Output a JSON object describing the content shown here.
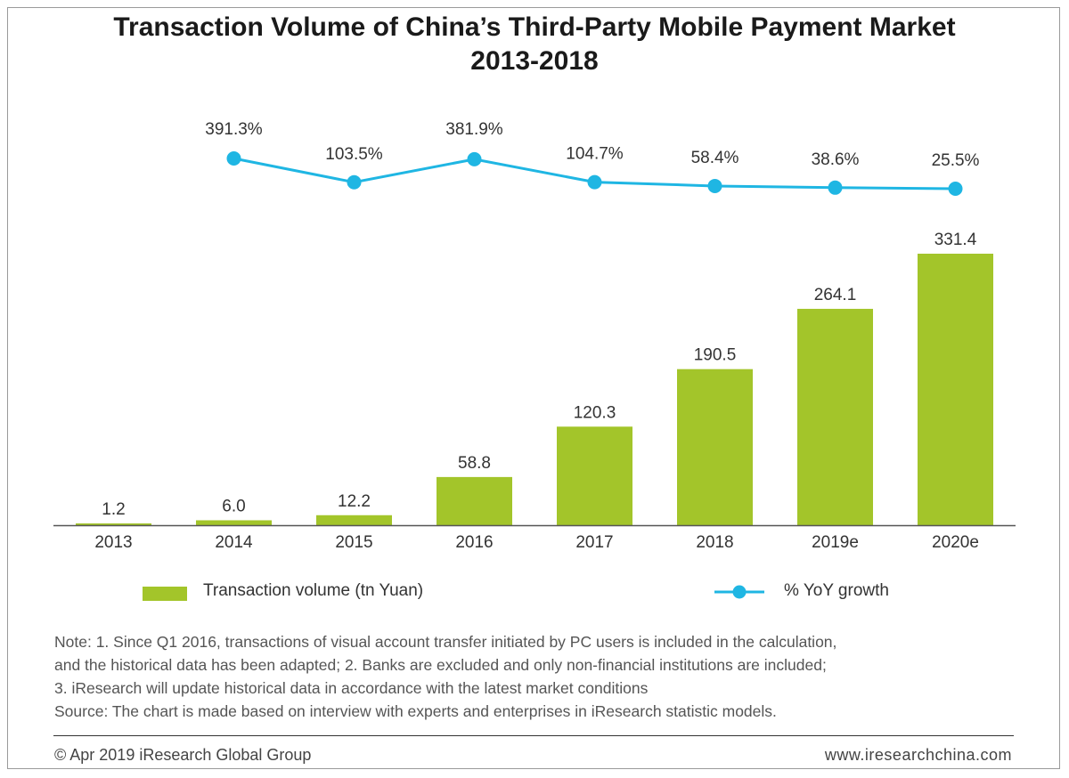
{
  "header": {
    "title_line1": "Transaction Volume of China’s Third-Party Mobile Payment Market",
    "title_line2": "2013-2018"
  },
  "chart_data": {
    "type": "bar",
    "title": "Transaction Volume of China’s Third-Party Mobile Payment Market 2013-2018",
    "categories": [
      "2013",
      "2014",
      "2015",
      "2016",
      "2017",
      "2018",
      "2019e",
      "2020e"
    ],
    "series": [
      {
        "name": "Transaction volume (tn Yuan)",
        "kind": "bar",
        "color": "#a3c52a",
        "values": [
          1.2,
          6.0,
          12.2,
          58.8,
          120.3,
          190.5,
          264.1,
          331.4
        ],
        "labels": [
          "1.2",
          "6.0",
          "12.2",
          "58.8",
          "120.3",
          "190.5",
          "264.1",
          "331.4"
        ]
      },
      {
        "name": "% YoY growth",
        "kind": "line",
        "color": "#1fb6e3",
        "values": [
          null,
          391.3,
          103.5,
          381.9,
          104.7,
          58.4,
          38.6,
          25.5
        ],
        "labels": [
          "",
          "391.3%",
          "103.5%",
          "381.9%",
          "104.7%",
          "58.4%",
          "38.6%",
          "25.5%"
        ]
      }
    ],
    "bar_ylim": [
      0,
      331.4
    ],
    "xlabel": "",
    "ylabel": "",
    "grid": false,
    "legend_position": "bottom"
  },
  "legend": {
    "bar_label": "Transaction volume (tn Yuan)",
    "line_label": "% YoY growth"
  },
  "notes": {
    "line1": "Note:  1. Since Q1 2016, transactions of visual account transfer initiated by PC  users is included in the calculation,",
    "line2": "and the historical data has been adapted;    2. Banks are excluded and only non-financial institutions are included;",
    "line3": "3. iResearch will update historical data in accordance with the latest market  conditions",
    "line4": "Source: The chart is made  based on interview with experts and enterprises in iResearch statistic models."
  },
  "footer": {
    "copyright": "© Apr 2019  iResearch Global Group",
    "website": "www.iresearchchina.com"
  }
}
